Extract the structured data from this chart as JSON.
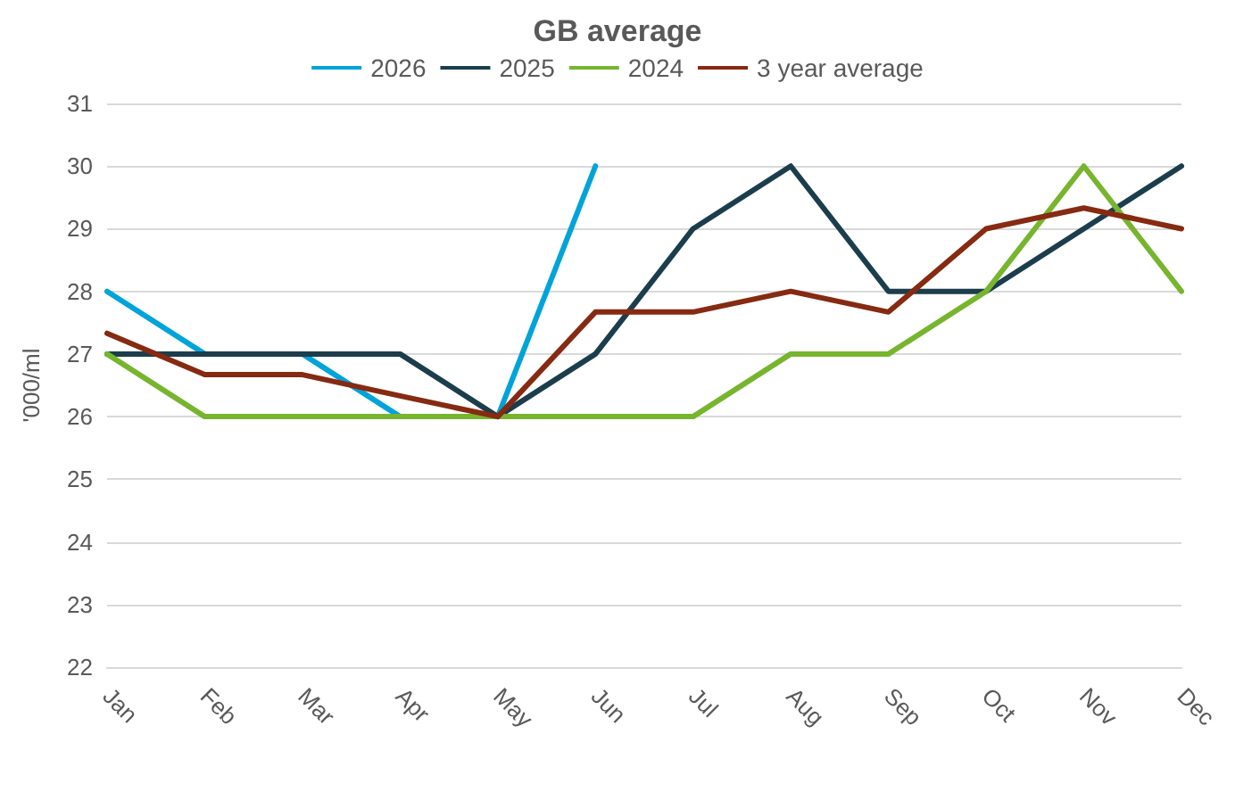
{
  "chart_data": {
    "type": "line",
    "title": "GB average",
    "ylabel": "'000/ml",
    "categories": [
      "Jan",
      "Feb",
      "Mar",
      "Apr",
      "May",
      "Jun",
      "Jul",
      "Aug",
      "Sep",
      "Oct",
      "Nov",
      "Dec"
    ],
    "series": [
      {
        "name": "2026",
        "color": "#00a3da",
        "values": [
          28,
          27,
          27,
          26,
          26,
          30,
          null,
          null,
          null,
          null,
          null,
          null
        ]
      },
      {
        "name": "2025",
        "color": "#1c3d4c",
        "values": [
          27,
          27,
          27,
          27,
          26,
          27,
          29,
          30,
          28,
          28,
          29,
          30
        ]
      },
      {
        "name": "2024",
        "color": "#77b52e",
        "values": [
          27,
          26,
          26,
          26,
          26,
          26,
          26,
          27,
          27,
          28,
          30,
          28
        ]
      },
      {
        "name": "3 year average",
        "color": "#862a12",
        "values": [
          27.33,
          26.67,
          26.67,
          26.33,
          26,
          27.67,
          27.67,
          28,
          27.67,
          29,
          29.33,
          29
        ]
      }
    ],
    "ylim": [
      22,
      31
    ],
    "yticks": [
      22,
      23,
      24,
      25,
      26,
      27,
      28,
      29,
      30,
      31
    ],
    "grid": "y",
    "legend": "top",
    "marker": "none",
    "line_style": "solid"
  }
}
